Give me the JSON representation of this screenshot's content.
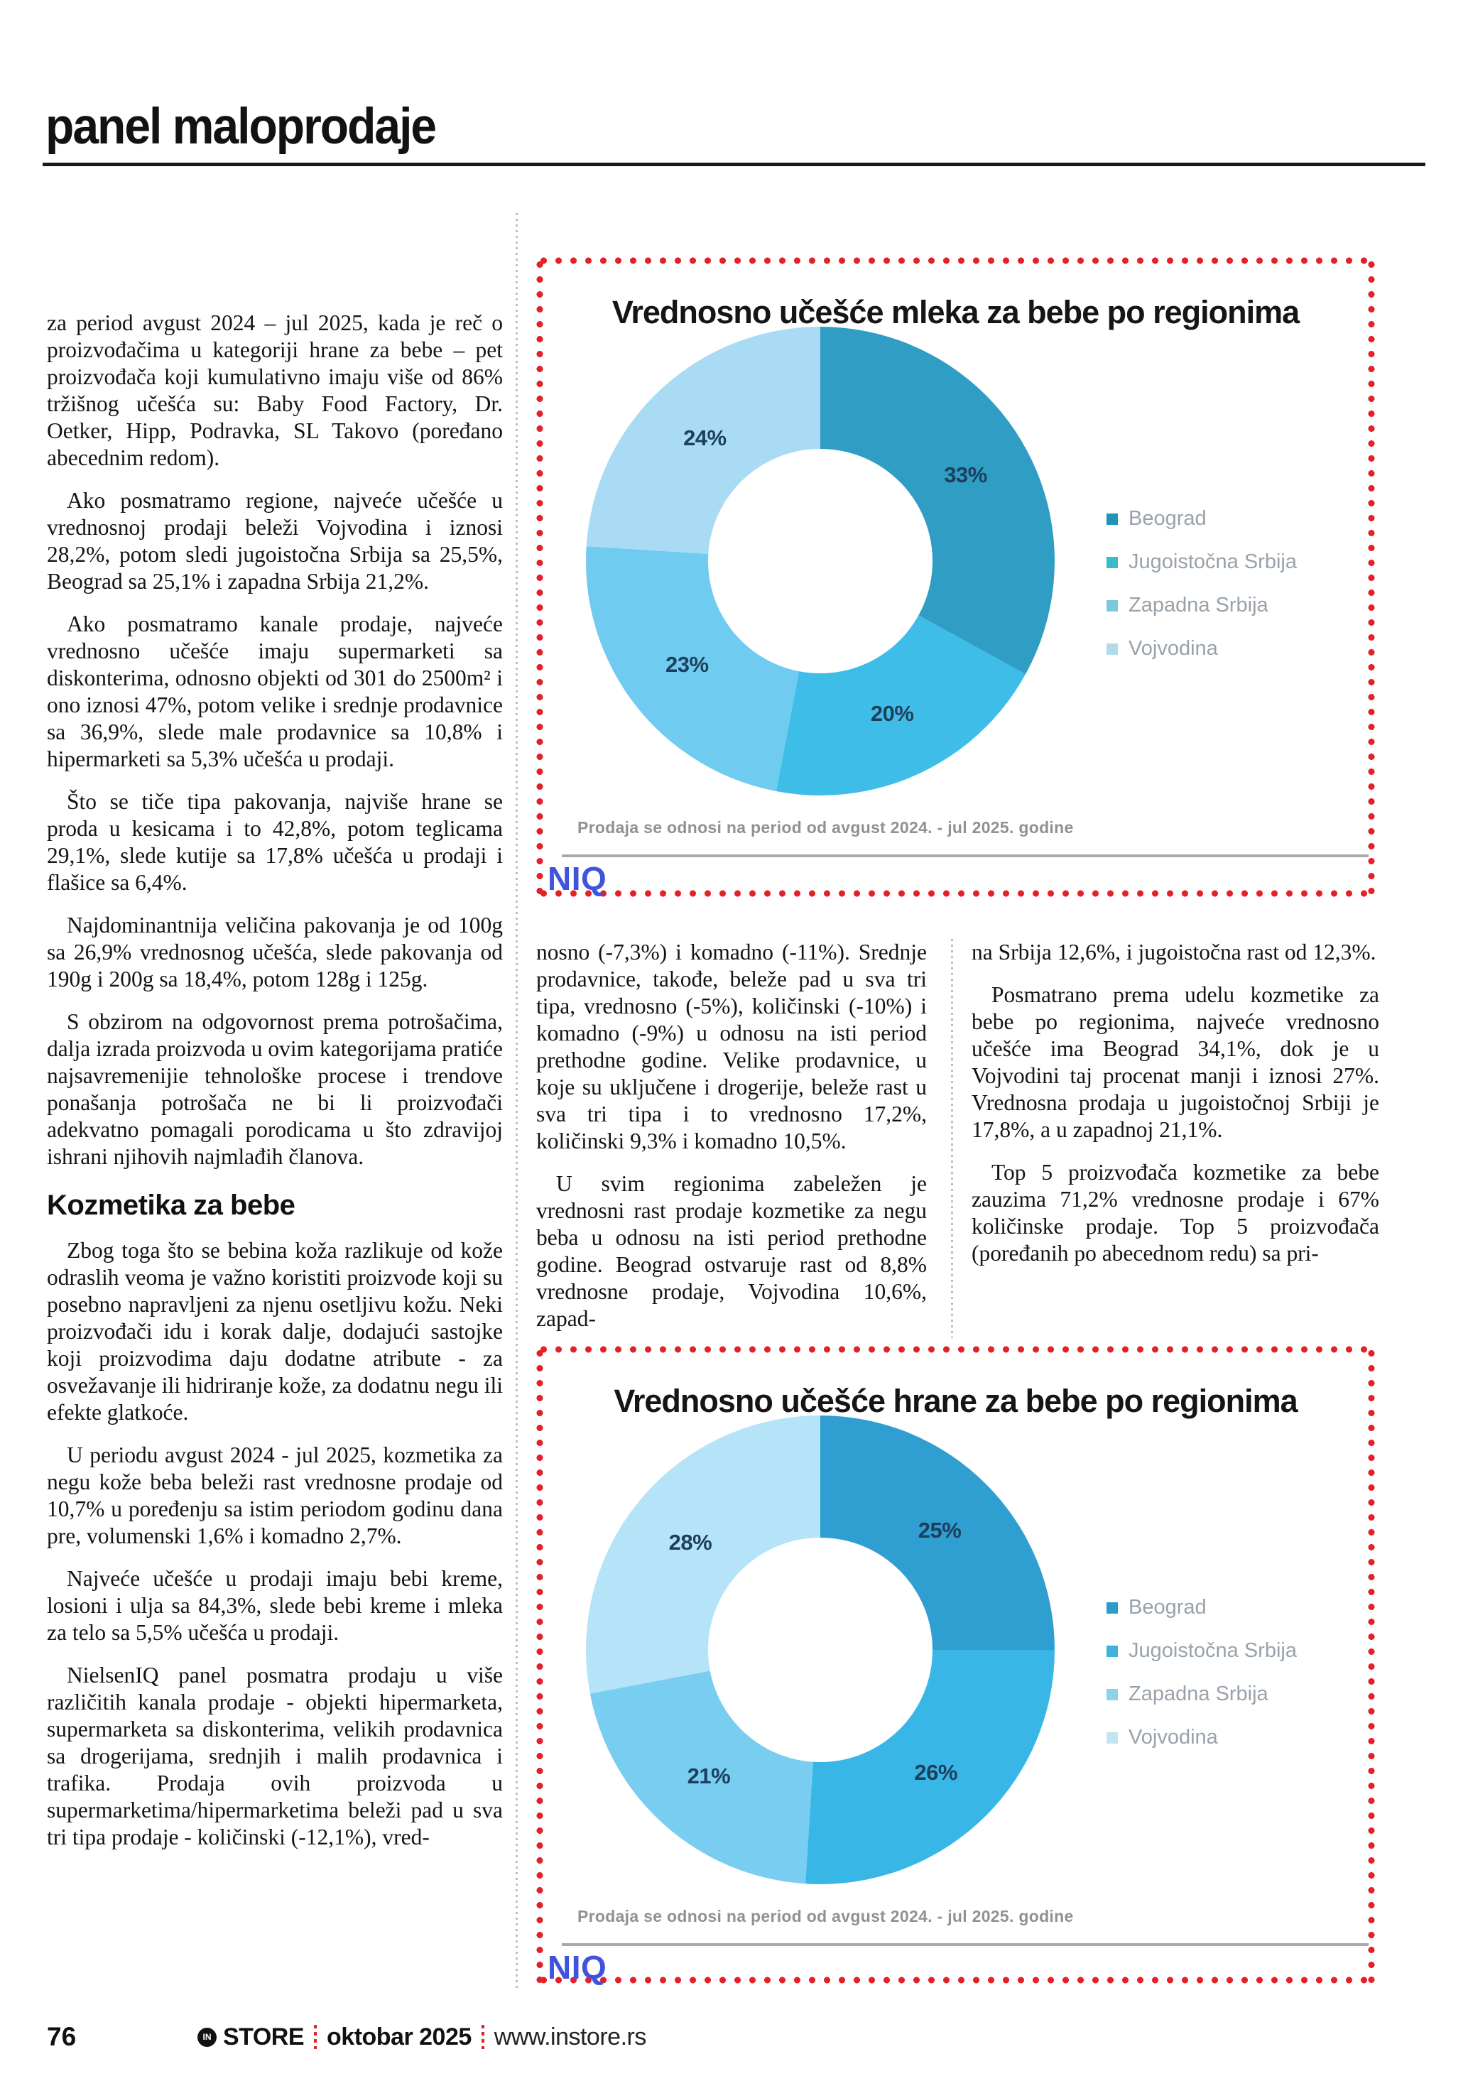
{
  "header": {
    "title": "panel maloprodaje"
  },
  "article": {
    "column1": {
      "paragraphs": [
        "za period avgust 2024 – jul 2025, kada je reč o proizvođačima u kategoriji hrane za bebe – pet proizvođača koji kumulativno imaju više od 86% tržišnog učešća su: Baby Food Factory, Dr. Oetker, Hipp, Podravka, SL Takovo (poređano abecednim redom).",
        "Ako posmatramo regione, najveće učešće u vrednosnoj prodaji beleži Vojvodina i iznosi 28,2%, potom sledi jugoistočna Srbija sa 25,5%, Beograd sa 25,1% i zapadna Srbija 21,2%.",
        "Ako posmatramo kanale prodaje, najveće vrednosno učešće imaju supermarketi sa diskonterima, odnosno objekti od 301 do 2500m² i ono iznosi 47%, potom velike i srednje prodavnice sa 36,9%, slede male prodavnice sa 10,8% i hipermarketi sa 5,3% učešća u prodaji.",
        "Što se tiče tipa pakovanja, najviše hrane se proda u kesicama i to 42,8%, potom teglicama 29,1%, slede kutije sa 17,8% učešća u prodaji i flašice sa 6,4%.",
        "Najdominantnija veličina pakovanja je od 100g sa 26,9% vrednosnog učešća, slede pakovanja od 190g i 200g sa 18,4%, potom 128g i 125g.",
        "S obzirom na odgovornost prema potrošačima, dalja izrada proizvoda u ovim kategorijama pratiće najsavremenijie tehnološke procese i trendove ponašanja potrošača ne bi li proizvođači adekvatno pomagali porodicama u što zdravijoj ishrani njihovih najmlađih članova."
      ],
      "subheading": "Kozmetika za bebe",
      "paragraphs_after": [
        "Zbog toga što se bebina koža razlikuje od kože odraslih veoma je važno koristiti proizvode koji su posebno napravljeni za njenu osetljivu kožu. Neki proizvođači idu i korak dalje, dodajući sastojke koji proizvodima daju dodatne atribute - za osvežavanje ili hidriranje kože, za dodatnu negu ili efekte glatkoće.",
        "U periodu avgust 2024 - jul 2025, kozmetika za negu kože beba beleži rast vrednosne prodaje od 10,7% u poređenju sa istim periodom godinu dana pre, volumenski 1,6% i komadno 2,7%.",
        "Najveće učešće u prodaji imaju bebi kreme, losioni i ulja sa 84,3%, slede bebi kreme i mleka za telo sa 5,5% učešća u prodaji.",
        "NielsenIQ panel posmatra prodaju u više različitih kanala prodaje - objekti hipermarketa, supermarketa sa diskonterima, velikih prodavnica sa drogerijama, srednjih i malih prodavnica i trafika. Prodaja ovih proizvoda u supermarketima/hipermarketima beleži pad u sva tri tipa prodaje - količinski (-12,1%), vred-"
      ]
    },
    "column2": {
      "paragraphs": [
        "nosno (-7,3%) i komadno (-11%). Srednje prodavnice, takođe, beleže pad u sva tri tipa, vrednosno (-5%), količinski (-10%) i komadno (-9%) u odnosu na isti period prethodne godine. Velike prodavnice, u koje su uključene i drogerije, beleže rast u sva tri tipa i to vrednosno 17,2%, količinski 9,3% i komadno 10,5%.",
        "U svim regionima zabeležen je vrednosni rast prodaje kozmetike za negu beba u odnosu na isti period prethodne godine. Beograd ostvaruje rast od 8,8% vrednosne prodaje, Vojvodina 10,6%, zapad-"
      ]
    },
    "column3": {
      "paragraphs": [
        "na Srbija 12,6%, i jugoistočna rast od 12,3%.",
        "Posmatrano prema udelu kozmetike za bebe po regionima, najveće vrednosno učešće ima Beograd 34,1%, dok je u Vojvodini taj procenat manji i iznosi 27%. Vrednosna prodaja u jugoistočnoj Srbiji je 17,8%, a u zapadnoj 21,1%.",
        "Top 5 proizvođača kozmetike za bebe zauzima 71,2% vrednosne prodaje i 67% količinske prodaje. Top 5 proizvođača (poređanih po abecednom redu) sa pri-"
      ]
    }
  },
  "charts": [
    {
      "chart_data": {
        "type": "pie",
        "subtype": "donut",
        "title": "Vrednosno učešće mleka za bebe po regionima",
        "categories": [
          "Beograd",
          "Jugoistočna Srbija",
          "Zapadna Srbija",
          "Vojvodina"
        ],
        "values": [
          33,
          20,
          23,
          24
        ],
        "labels": [
          "33%",
          "20%",
          "23%",
          "24%"
        ],
        "colors": [
          "#2f9dc4",
          "#3fbde9",
          "#70cbf0",
          "#a9dcf4"
        ],
        "legend_colors": [
          "#1f94b8",
          "#38bcc8",
          "#7cc8dd",
          "#b0dcea"
        ],
        "legend_position": "right",
        "footnote": "Prodaja se odnosi na period od avgust 2024.  - jul 2025. godine",
        "source": "NIQ"
      }
    },
    {
      "chart_data": {
        "type": "pie",
        "subtype": "donut",
        "title": "Vrednosno učešće hrane za bebe po regionima",
        "categories": [
          "Beograd",
          "Jugoistočna Srbija",
          "Zapadna Srbija",
          "Vojvodina"
        ],
        "values": [
          25,
          26,
          21,
          28
        ],
        "labels": [
          "25%",
          "26%",
          "21%",
          "28%"
        ],
        "colors": [
          "#2f9ed0",
          "#38b7e6",
          "#79cdf0",
          "#b5e3f8"
        ],
        "legend_colors": [
          "#2c9ccb",
          "#41b0dc",
          "#8ed2ea",
          "#bfe6f2"
        ],
        "legend_position": "right",
        "footnote": "Prodaja se odnosi na period od avgust 2024.  - jul 2025. godine",
        "source": "NIQ"
      }
    }
  ],
  "footer": {
    "page_number": "76",
    "logo_initials": "IN",
    "brand": "STORE",
    "issue": "oktobar 2025",
    "website": "www.instore.rs"
  }
}
